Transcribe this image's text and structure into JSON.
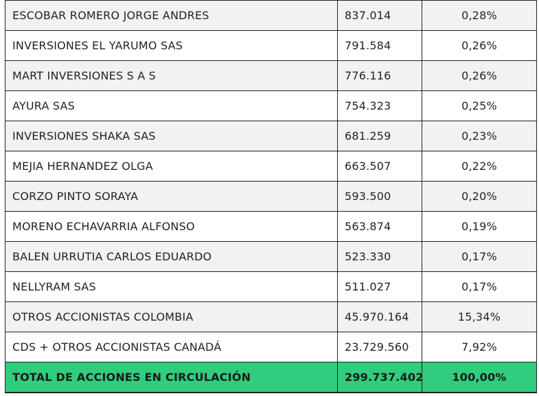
{
  "table": {
    "rows": [
      {
        "name": "ESCOBAR ROMERO JORGE ANDRES",
        "shares": "837.014",
        "percent": "0,28%",
        "shaded": true
      },
      {
        "name": "INVERSIONES EL YARUMO SAS",
        "shares": "791.584",
        "percent": "0,26%",
        "shaded": false
      },
      {
        "name": "MART INVERSIONES S A S",
        "shares": "776.116",
        "percent": "0,26%",
        "shaded": true
      },
      {
        "name": "AYURA SAS",
        "shares": "754.323",
        "percent": "0,25%",
        "shaded": false
      },
      {
        "name": "INVERSIONES SHAKA SAS",
        "shares": "681.259",
        "percent": "0,23%",
        "shaded": true
      },
      {
        "name": "MEJIA HERNANDEZ OLGA",
        "shares": "663.507",
        "percent": "0,22%",
        "shaded": false
      },
      {
        "name": "CORZO PINTO SORAYA",
        "shares": "593.500",
        "percent": "0,20%",
        "shaded": true
      },
      {
        "name": "MORENO ECHAVARRIA ALFONSO",
        "shares": "563.874",
        "percent": "0,19%",
        "shaded": false
      },
      {
        "name": "BALEN URRUTIA CARLOS EDUARDO",
        "shares": "523.330",
        "percent": "0,17%",
        "shaded": true
      },
      {
        "name": "NELLYRAM SAS",
        "shares": "511.027",
        "percent": "0,17%",
        "shaded": false
      },
      {
        "name": "OTROS ACCIONISTAS COLOMBIA",
        "shares": "45.970.164",
        "percent": "15,34%",
        "shaded": true
      },
      {
        "name": "CDS + OTROS ACCIONISTAS CANADÁ",
        "shares": "23.729.560",
        "percent": "7,92%",
        "shaded": false
      }
    ],
    "total": {
      "name": "TOTAL DE ACCIONES EN CIRCULACIÓN",
      "shares": "299.737.402",
      "percent": "100,00%"
    }
  },
  "colors": {
    "total_row_bg": "#2fcd7c",
    "shaded_row_bg": "#f2f2f2",
    "plain_row_bg": "#ffffff",
    "border": "#1f1f1f"
  }
}
